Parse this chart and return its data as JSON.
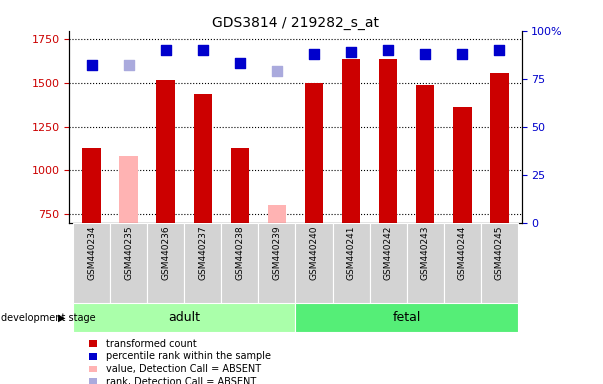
{
  "title": "GDS3814 / 219282_s_at",
  "samples": [
    "GSM440234",
    "GSM440235",
    "GSM440236",
    "GSM440237",
    "GSM440238",
    "GSM440239",
    "GSM440240",
    "GSM440241",
    "GSM440242",
    "GSM440243",
    "GSM440244",
    "GSM440245"
  ],
  "transformed_count": [
    1130,
    null,
    1520,
    1435,
    1130,
    null,
    1500,
    1640,
    1640,
    1490,
    1365,
    1555
  ],
  "absent_value": [
    null,
    1085,
    null,
    null,
    null,
    800,
    null,
    null,
    null,
    null,
    null,
    null
  ],
  "percentile_rank": [
    82,
    null,
    90,
    90,
    83,
    null,
    88,
    89,
    90,
    88,
    88,
    90
  ],
  "absent_rank": [
    null,
    82,
    null,
    null,
    null,
    79,
    null,
    null,
    null,
    null,
    null,
    null
  ],
  "groups": [
    {
      "label": "adult",
      "start": 0,
      "end": 5
    },
    {
      "label": "fetal",
      "start": 6,
      "end": 11
    }
  ],
  "ylim_left": [
    700,
    1800
  ],
  "ylim_right": [
    0,
    100
  ],
  "yticks_left": [
    750,
    1000,
    1250,
    1500,
    1750
  ],
  "yticks_right": [
    0,
    25,
    50,
    75,
    100
  ],
  "bar_color": "#cc0000",
  "absent_bar_color": "#ffb3b3",
  "dot_color": "#0000cc",
  "absent_dot_color": "#aaaadd",
  "bar_width": 0.5,
  "dot_size": 45,
  "label_color_left": "#cc0000",
  "label_color_right": "#0000cc",
  "adult_color": "#aaffaa",
  "fetal_color": "#55ee77",
  "label_bg": "#d3d3d3",
  "legend_items": [
    {
      "label": "transformed count",
      "color": "#cc0000",
      "type": "square"
    },
    {
      "label": "percentile rank within the sample",
      "color": "#0000cc",
      "type": "square"
    },
    {
      "label": "value, Detection Call = ABSENT",
      "color": "#ffb3b3",
      "type": "square"
    },
    {
      "label": "rank, Detection Call = ABSENT",
      "color": "#aaaadd",
      "type": "square"
    }
  ]
}
